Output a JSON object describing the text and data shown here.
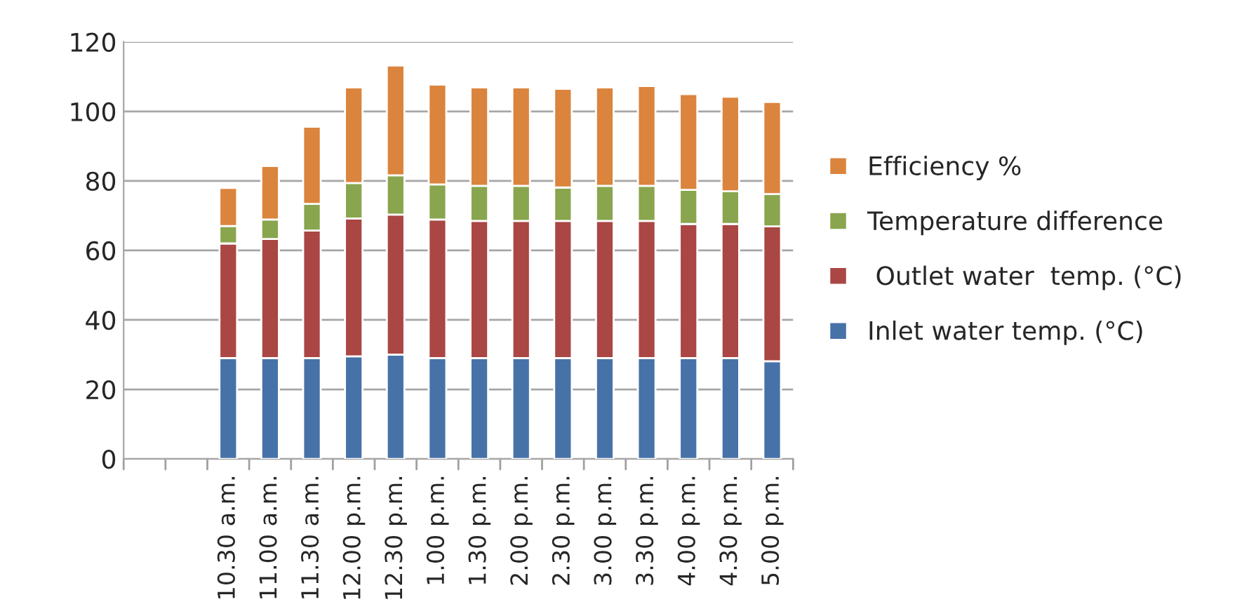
{
  "chart_data": {
    "type": "bar",
    "stacked": true,
    "categories": [
      null,
      null,
      "10.30 a.m.",
      "11.00 a.m.",
      "11.30 a.m.",
      "12.00 p.m.",
      "12.30 p.m.",
      "1.00 p.m.",
      "1.30 p.m.",
      "2.00 p.m.",
      "2.30 p.m.",
      "3.00 p.m.",
      "3.30 p.m.",
      "4.00 p.m.",
      "4.30 p.m.",
      "5.00 p.m."
    ],
    "series": [
      {
        "name": "Inlet water temp. (°C)",
        "color": "#4672a8",
        "values": [
          null,
          null,
          29,
          29,
          29,
          29.5,
          30,
          29,
          29,
          29,
          29,
          29,
          29,
          29,
          29,
          28.1
        ]
      },
      {
        "name": " Outlet water  temp. (°C)",
        "color": "#aa4644",
        "values": [
          null,
          null,
          33,
          34.3,
          36.7,
          39.7,
          40.3,
          39.9,
          39.5,
          39.5,
          39.5,
          39.5,
          39.5,
          38.6,
          38.6,
          38.8
        ]
      },
      {
        "name": "Temperature difference",
        "color": "#89a54e",
        "values": [
          null,
          null,
          5,
          5.6,
          7.7,
          10.2,
          11.3,
          10.1,
          10.1,
          10.1,
          9.6,
          10.1,
          10.1,
          9.8,
          9.4,
          9.3
        ]
      },
      {
        "name": "Efficiency %",
        "color": "#db843d",
        "values": [
          null,
          null,
          11,
          15.4,
          22.2,
          27.5,
          31.6,
          28.7,
          28.3,
          28.3,
          28.4,
          28.3,
          28.7,
          27.6,
          27.2,
          26.5
        ]
      }
    ],
    "ylim": [
      0,
      120
    ],
    "yticks": [
      0,
      20,
      40,
      60,
      80,
      100,
      120
    ],
    "grid": "y",
    "legend": "right"
  }
}
